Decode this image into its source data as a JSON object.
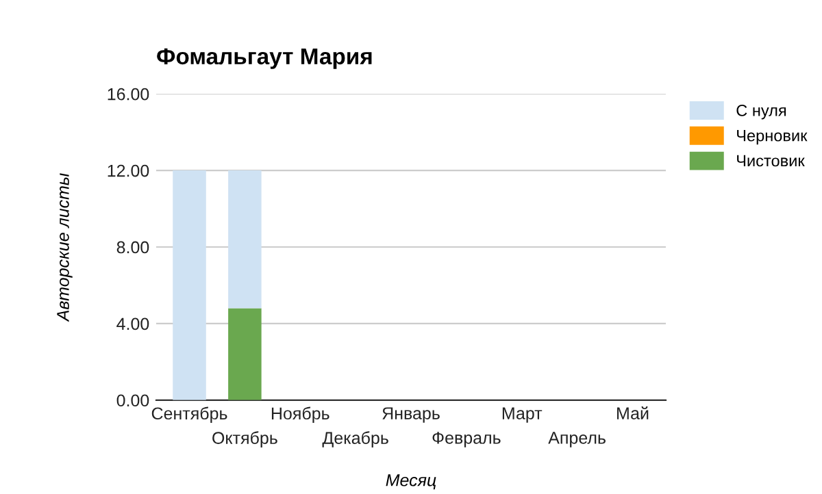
{
  "chart_data": {
    "type": "bar",
    "title": "Фомальгаут Мария",
    "xlabel": "Месяц",
    "ylabel": "Авторские листы",
    "categories": [
      "Сентябрь",
      "Октябрь",
      "Ноябрь",
      "Декабрь",
      "Январь",
      "Февраль",
      "Март",
      "Апрель",
      "Май"
    ],
    "stacked": true,
    "series": [
      {
        "name": "Чистовик",
        "color": "#6aa84f",
        "values": [
          0,
          4.8,
          0,
          0,
          0,
          0,
          0,
          0,
          0
        ]
      },
      {
        "name": "Черновик",
        "color": "#ff9900",
        "values": [
          0,
          0,
          0,
          0,
          0,
          0,
          0,
          0,
          0
        ]
      },
      {
        "name": "С нуля",
        "color": "#cfe2f3",
        "values": [
          12,
          7.2,
          0,
          0,
          0,
          0,
          0,
          0,
          0
        ]
      }
    ],
    "ylim": [
      0,
      16
    ],
    "yticks": [
      {
        "value": 0,
        "label": "0.00"
      },
      {
        "value": 4,
        "label": "4.00"
      },
      {
        "value": 8,
        "label": "8.00"
      },
      {
        "value": 12,
        "label": "12.00"
      },
      {
        "value": 16,
        "label": "16.00"
      }
    ],
    "grid": "y",
    "legend": "right"
  }
}
